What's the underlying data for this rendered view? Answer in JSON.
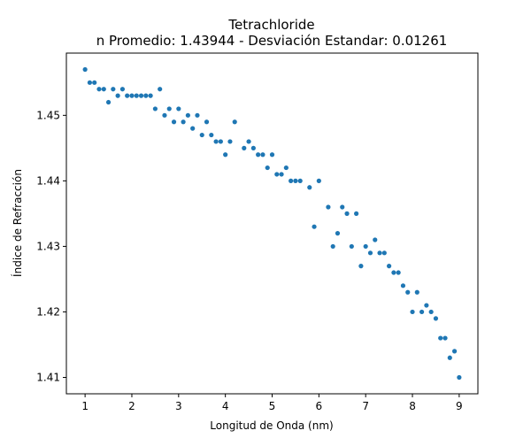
{
  "chart_data": {
    "type": "scatter",
    "title": "Tetrachloride",
    "subtitle": "n Promedio: 1.43944 - Desviación Estandar: 0.01261",
    "xlabel": "Longitud de Onda (nm)",
    "ylabel": "Índice de Refracción",
    "xlim": [
      0.6,
      9.4
    ],
    "ylim": [
      1.4075,
      1.4595
    ],
    "x_ticks": [
      1,
      2,
      3,
      4,
      5,
      6,
      7,
      8,
      9
    ],
    "y_ticks": [
      1.41,
      1.42,
      1.43,
      1.44,
      1.45
    ],
    "x_tick_labels": [
      "1",
      "2",
      "3",
      "4",
      "5",
      "6",
      "7",
      "8",
      "9"
    ],
    "y_tick_labels": [
      "1.41",
      "1.42",
      "1.43",
      "1.44",
      "1.45"
    ],
    "grid": false,
    "marker_color": "#1f77b4",
    "points": [
      [
        1.0,
        1.457
      ],
      [
        1.1,
        1.455
      ],
      [
        1.2,
        1.455
      ],
      [
        1.3,
        1.454
      ],
      [
        1.4,
        1.454
      ],
      [
        1.5,
        1.452
      ],
      [
        1.6,
        1.454
      ],
      [
        1.7,
        1.453
      ],
      [
        1.8,
        1.454
      ],
      [
        1.9,
        1.453
      ],
      [
        2.0,
        1.453
      ],
      [
        2.1,
        1.453
      ],
      [
        2.2,
        1.453
      ],
      [
        2.3,
        1.453
      ],
      [
        2.4,
        1.453
      ],
      [
        2.5,
        1.451
      ],
      [
        2.6,
        1.454
      ],
      [
        2.7,
        1.45
      ],
      [
        2.8,
        1.451
      ],
      [
        2.9,
        1.449
      ],
      [
        3.0,
        1.451
      ],
      [
        3.1,
        1.449
      ],
      [
        3.2,
        1.45
      ],
      [
        3.3,
        1.448
      ],
      [
        3.4,
        1.45
      ],
      [
        3.5,
        1.447
      ],
      [
        3.6,
        1.449
      ],
      [
        3.7,
        1.447
      ],
      [
        3.8,
        1.446
      ],
      [
        3.9,
        1.446
      ],
      [
        4.0,
        1.444
      ],
      [
        4.1,
        1.446
      ],
      [
        4.2,
        1.449
      ],
      [
        4.4,
        1.445
      ],
      [
        4.5,
        1.446
      ],
      [
        4.6,
        1.445
      ],
      [
        4.7,
        1.444
      ],
      [
        4.8,
        1.444
      ],
      [
        4.9,
        1.442
      ],
      [
        5.0,
        1.444
      ],
      [
        5.1,
        1.441
      ],
      [
        5.2,
        1.441
      ],
      [
        5.3,
        1.442
      ],
      [
        5.4,
        1.44
      ],
      [
        5.5,
        1.44
      ],
      [
        5.6,
        1.44
      ],
      [
        5.8,
        1.439
      ],
      [
        5.9,
        1.433
      ],
      [
        6.0,
        1.44
      ],
      [
        6.2,
        1.436
      ],
      [
        6.3,
        1.43
      ],
      [
        6.4,
        1.432
      ],
      [
        6.5,
        1.436
      ],
      [
        6.6,
        1.435
      ],
      [
        6.7,
        1.43
      ],
      [
        6.8,
        1.435
      ],
      [
        6.9,
        1.427
      ],
      [
        7.0,
        1.43
      ],
      [
        7.1,
        1.429
      ],
      [
        7.2,
        1.431
      ],
      [
        7.3,
        1.429
      ],
      [
        7.4,
        1.429
      ],
      [
        7.5,
        1.427
      ],
      [
        7.6,
        1.426
      ],
      [
        7.7,
        1.426
      ],
      [
        7.8,
        1.424
      ],
      [
        7.9,
        1.423
      ],
      [
        8.0,
        1.42
      ],
      [
        8.1,
        1.423
      ],
      [
        8.2,
        1.42
      ],
      [
        8.3,
        1.421
      ],
      [
        8.4,
        1.42
      ],
      [
        8.5,
        1.419
      ],
      [
        8.6,
        1.416
      ],
      [
        8.7,
        1.416
      ],
      [
        8.8,
        1.413
      ],
      [
        8.9,
        1.414
      ],
      [
        9.0,
        1.41
      ]
    ]
  }
}
